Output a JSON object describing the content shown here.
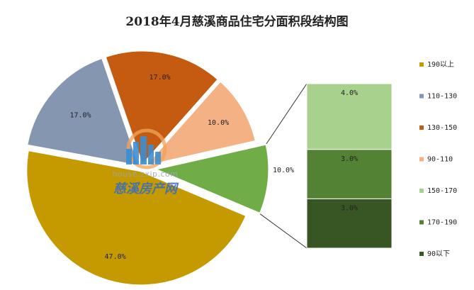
{
  "chart_data": {
    "type": "pie",
    "title": "2018年4月慈溪商品住宅分面积段结构图",
    "slices": [
      {
        "name": "190以上",
        "value": 47.0,
        "label": "47.0%",
        "color": "#C49A00"
      },
      {
        "name": "110-130",
        "value": 17.0,
        "label": "17.0%",
        "color": "#8496B0"
      },
      {
        "name": "130-150",
        "value": 17.0,
        "label": "17.0%",
        "color": "#C55A11"
      },
      {
        "name": "90-110",
        "value": 10.0,
        "label": "10.0%",
        "color": "#F4B183"
      },
      {
        "name": "",
        "value": 10.0,
        "label": "10.0%",
        "color": "#70AD47",
        "exploded_to_bar": true
      }
    ],
    "bar_breakdown": [
      {
        "name": "150-170",
        "value": 4.0,
        "label": "4.0%",
        "color": "#A9D18E"
      },
      {
        "name": "170-190",
        "value": 3.0,
        "label": "3.0%",
        "color": "#548235"
      },
      {
        "name": "90以下",
        "value": 3.0,
        "label": "3.0%",
        "color": "#375623"
      }
    ],
    "legend": {
      "position": "right",
      "entries": [
        {
          "label": "190以上",
          "color": "#C49A00"
        },
        {
          "label": "110-130",
          "color": "#8496B0"
        },
        {
          "label": "130-150",
          "color": "#C55A11"
        },
        {
          "label": "90-110",
          "color": "#F4B183"
        },
        {
          "label": "150-170",
          "color": "#A9D18E"
        },
        {
          "label": "170-190",
          "color": "#548235"
        },
        {
          "label": "90以下",
          "color": "#375623"
        }
      ]
    }
  },
  "watermark": {
    "url": "house.zxip.com",
    "name": "慈溪房产网",
    "icon": "building-logo-icon"
  }
}
